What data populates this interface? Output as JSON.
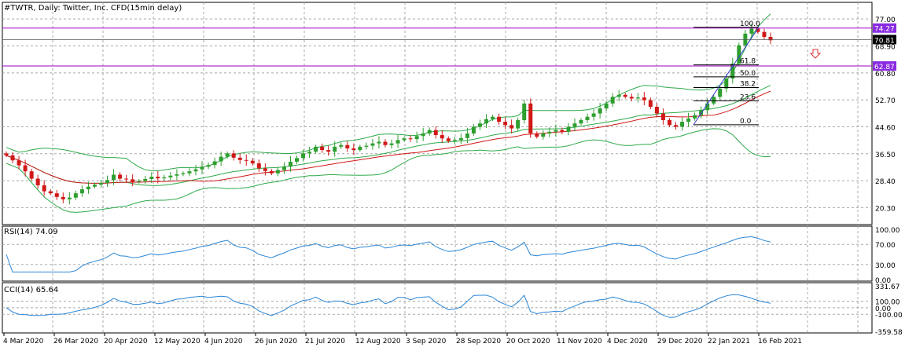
{
  "colors": {
    "frame": "#000000",
    "grid": "#a9a9a9",
    "bull": "#2e9e2e",
    "bear": "#d01818",
    "bands": "#2eaa4a",
    "ma": "#d01818",
    "indicator": "#2a86d6",
    "levels": "#a000c8",
    "arrow": "#e03030",
    "badge_bg": "#8a2be2",
    "badge_text": "#ffffff"
  },
  "chart_data": [
    {
      "type": "candlestick",
      "title": "#TWTR, Daily:  Twitter, Inc. CFD(15min delay)",
      "ylim": [
        15.2,
        82.0
      ],
      "y_ticks": [
        "77.00",
        "68.90",
        "60.80",
        "52.70",
        "44.60",
        "36.50",
        "28.40",
        "20.30"
      ],
      "y_tick_values": [
        77.0,
        68.9,
        60.8,
        52.7,
        44.6,
        36.5,
        28.4,
        20.3
      ],
      "x_labels": [
        "4 Mar 2020",
        "26 Mar 2020",
        "20 Apr 2020",
        "12 May 2020",
        "4 Jun 2020",
        "26 Jun 2020",
        "21 Jul 2020",
        "12 Aug 2020",
        "3 Sep 2020",
        "28 Sep 2020",
        "20 Oct 2020",
        "11 Nov 2020",
        "4 Dec 2020",
        "29 Dec 2020",
        "22 Jan 2021",
        "16 Feb 2021"
      ],
      "series_close": [
        36,
        34.5,
        33,
        31.2,
        29,
        27,
        25.2,
        24.6,
        23.5,
        22.8,
        23.3,
        24.6,
        25.8,
        26.6,
        27.2,
        27.7,
        28.6,
        30.2,
        29,
        28.8,
        28.1,
        28.3,
        28.9,
        29.6,
        29.1,
        29.4,
        29.9,
        30.3,
        30.6,
        31.2,
        31.8,
        32.6,
        33.1,
        34.2,
        35.6,
        36.6,
        35.3,
        34.6,
        34.4,
        33.6,
        32.1,
        31.3,
        30.6,
        31.6,
        32.6,
        34.1,
        35.2,
        36.6,
        37.1,
        38.6,
        37.6,
        37.1,
        38.6,
        39.1,
        38.1,
        37.6,
        38.6,
        38.9,
        39.6,
        40.1,
        39.1,
        39.6,
        40.6,
        41.1,
        40.9,
        41.8,
        42.6,
        43.6,
        42.1,
        41.1,
        40.3,
        40.6,
        41.2,
        42.6,
        44.6,
        45.6,
        46.9,
        47.6,
        46.1,
        45.1,
        44.1,
        46.6,
        51.6,
        42.6,
        41.6,
        42.6,
        43.1,
        43.6,
        43.1,
        44.6,
        45.6,
        46.6,
        47.6,
        48.6,
        50.1,
        51.6,
        53.6,
        54.2,
        53.6,
        53.1,
        53.4,
        52.6,
        50.6,
        48.6,
        46.6,
        45.1,
        44.6,
        46.1,
        47.1,
        48.1,
        49.6,
        51.6,
        53.6,
        56.1,
        59.1,
        63.6,
        69.1,
        72.6,
        74.1,
        73.1,
        71.6,
        70.6
      ],
      "fibonacci_levels": [
        "100.0",
        "61.8",
        "50.0",
        "38.2",
        "23.6",
        "0.0"
      ],
      "fibonacci_values": [
        74.5,
        63.2,
        59.6,
        56.4,
        52.4,
        45.2
      ],
      "horizontal_levels": [
        {
          "value": 74.27,
          "label": "74.27"
        },
        {
          "value": 62.87,
          "label": "62.87"
        }
      ],
      "current_price": {
        "value": 70.81,
        "label": "70.81"
      }
    },
    {
      "type": "line",
      "title": "RSI(14) 74.09",
      "ylim": [
        0,
        100
      ],
      "y_ticks": [
        "100.00",
        "70.00",
        "30.00",
        "0.00"
      ],
      "y_tick_values": [
        100,
        70,
        30,
        0
      ]
    },
    {
      "type": "line",
      "title": "CCI(14) 65.64",
      "ylim": [
        -359.58,
        331.67
      ],
      "y_ticks": [
        "331.67",
        "100.00",
        "0.00",
        "-100.00",
        "-359.58"
      ],
      "y_tick_values": [
        331.67,
        100,
        0,
        -100,
        -359.58
      ]
    }
  ]
}
